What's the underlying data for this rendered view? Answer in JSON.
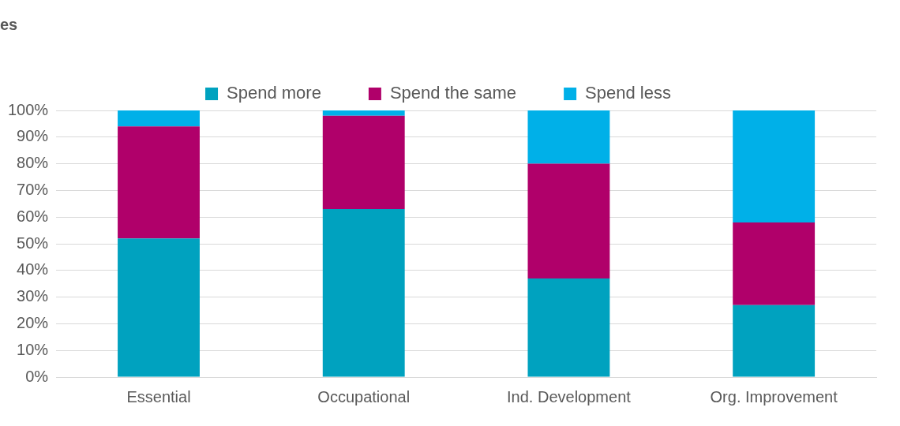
{
  "chart_data": {
    "type": "bar",
    "title": "es",
    "stacked": true,
    "categories": [
      "Essential",
      "Occupational",
      "Ind. Development",
      "Org. Improvement"
    ],
    "series": [
      {
        "name": "Spend more",
        "color": "#00a2bf",
        "values": [
          52,
          63,
          37,
          27
        ]
      },
      {
        "name": "Spend the same",
        "color": "#b0006a",
        "values": [
          42,
          35,
          43,
          31
        ]
      },
      {
        "name": "Spend less",
        "color": "#00b0e8",
        "values": [
          6,
          2,
          20,
          42
        ]
      }
    ],
    "ylim": [
      0,
      100
    ],
    "yticks": [
      {
        "value": 0,
        "label": "0%"
      },
      {
        "value": 10,
        "label": "10%"
      },
      {
        "value": 20,
        "label": "20%"
      },
      {
        "value": 30,
        "label": "30%"
      },
      {
        "value": 40,
        "label": "40%"
      },
      {
        "value": 50,
        "label": "50%"
      },
      {
        "value": 60,
        "label": "60%"
      },
      {
        "value": 70,
        "label": "70%"
      },
      {
        "value": 80,
        "label": "80%"
      },
      {
        "value": 90,
        "label": "90%"
      },
      {
        "value": 100,
        "label": "100%"
      }
    ],
    "grid": "y",
    "legend": "top"
  }
}
